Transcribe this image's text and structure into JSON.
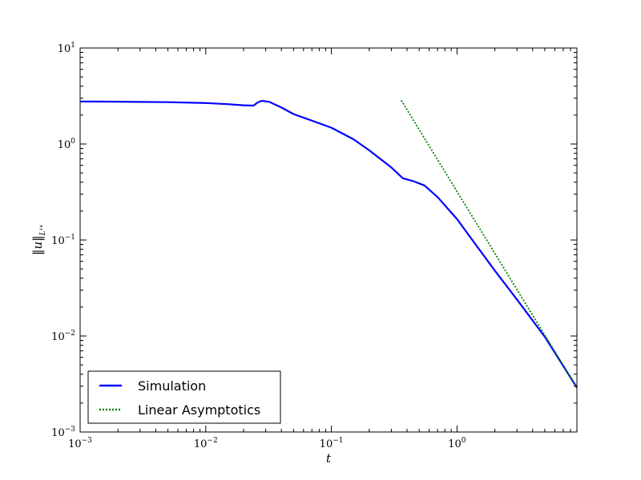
{
  "chart_data": {
    "type": "line",
    "xlabel": "t",
    "ylabel": "‖u‖",
    "ylabel_sub": "L¹⁴",
    "xscale": "log",
    "yscale": "log",
    "xlim": [
      0.001,
      9.0
    ],
    "ylim": [
      0.001,
      10
    ],
    "xticks": [
      {
        "value": 0.001,
        "base": "10",
        "exp": "−3"
      },
      {
        "value": 0.01,
        "base": "10",
        "exp": "−2"
      },
      {
        "value": 0.1,
        "base": "10",
        "exp": "−1"
      },
      {
        "value": 1,
        "base": "10",
        "exp": "0"
      }
    ],
    "yticks": [
      {
        "value": 0.001,
        "base": "10",
        "exp": "−3"
      },
      {
        "value": 0.01,
        "base": "10",
        "exp": "−2"
      },
      {
        "value": 0.1,
        "base": "10",
        "exp": "−1"
      },
      {
        "value": 1,
        "base": "10",
        "exp": "0"
      },
      {
        "value": 10,
        "base": "10",
        "exp": "1"
      }
    ],
    "grid": false,
    "legend_position": "lower-left",
    "series": [
      {
        "name": "Simulation",
        "color": "#0000ff",
        "style": "solid",
        "x": [
          0.001,
          0.002,
          0.005,
          0.01,
          0.015,
          0.02,
          0.024,
          0.026,
          0.028,
          0.032,
          0.04,
          0.05,
          0.07,
          0.1,
          0.15,
          0.2,
          0.3,
          0.37,
          0.45,
          0.55,
          0.7,
          1.0,
          1.5,
          2.0,
          3.0,
          5.0,
          9.0
        ],
        "y": [
          2.77,
          2.76,
          2.73,
          2.67,
          2.6,
          2.53,
          2.51,
          2.72,
          2.82,
          2.75,
          2.4,
          2.05,
          1.75,
          1.48,
          1.12,
          0.86,
          0.57,
          0.44,
          0.41,
          0.37,
          0.28,
          0.165,
          0.08,
          0.048,
          0.024,
          0.0098,
          0.0029
        ]
      },
      {
        "name": "Linear Asymptotics",
        "color": "#008000",
        "style": "dotted",
        "x": [
          0.36,
          9.0
        ],
        "y": [
          2.85,
          0.0029
        ]
      }
    ]
  }
}
